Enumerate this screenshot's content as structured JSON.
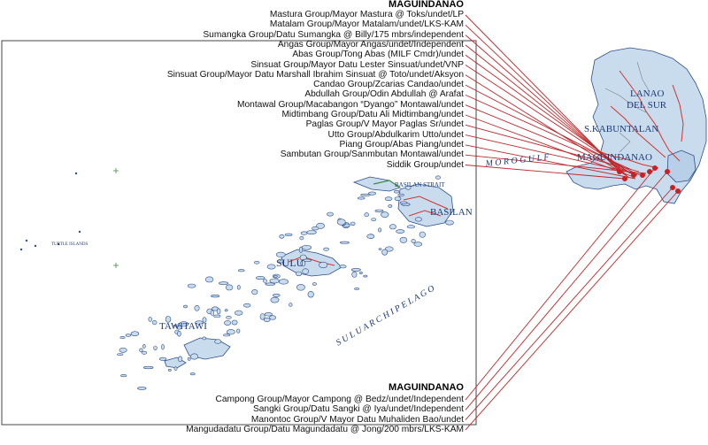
{
  "top_group": {
    "title": "MAGUINDANAO",
    "items": [
      "Mastura Group/Mayor Mastura @ Toks/undet/LP",
      "Matalam Group/Mayor Matalam/undet/LKS-KAM",
      "Sumangka Group/Datu Sumangka @ Billy/175 mbrs/independent",
      "Angas Group/Mayor Angas/undet/Independent",
      "Abas Group/Tong Abas (MILF Cmdr)/undet",
      "Sinsuat Group/Mayor Datu Lester Sinsuat/undet/VNP",
      "Sinsuat Group/Mayor Datu Marshall Ibrahim Sinsuat @ Toto/undet/Aksyon",
      "Candao Group/Zcarias Candao/undet",
      "Abdullah Group/Odin Abdullah @ Arafat",
      "Montawal Group/Macabangon “Dyango” Montawal/undet",
      "Midtimbang Group/Datu Ali Midtimbang/undet",
      "Paglas Group/V Mayor Paglas Sr/undet",
      "Utto Group/Abdulkarim Utto/undet",
      "Piang Group/Abas Piang/undet",
      "Sambutan Group/Sanmbutan Montawal/undet",
      "Siddik Group/undet"
    ]
  },
  "bottom_group": {
    "title": "MAGUINDANAO",
    "items": [
      "Campong Group/Mayor Campong @ Bedz/undet/Independent",
      "Sangki Group/Datu Sangki @ Iya/undet/Independent",
      "Manontoc Group/V Mayor Datu Muhaliden Bao/undet",
      "Mangudadatu Group/Datu Magundadatu @ Jong/200 mbrs/LKS-KAM"
    ]
  },
  "map_labels": {
    "lanao": "LANAO",
    "del_sur": "DEL SUR",
    "s_kabuntalan": "S.KABUNTALAN",
    "maguindanao": "MAGUINDANAO",
    "moro_gulf": "M O R O   G U L F",
    "basilan_strait": "BASILAN STRAIT",
    "basilan": "BASILAN",
    "sulu": "SULU",
    "tawitawi": "TAWITAWI",
    "sulu_archipelago": "S U L U   A R C H I P E L A G O",
    "turtle_islands": "TURTLE ISLANDS"
  },
  "colors": {
    "leader_line": "#c0282b",
    "marker": "#cc1f24",
    "map_land": "#c9dcee",
    "map_outline": "#2d4f8a",
    "frame": "#444444"
  }
}
